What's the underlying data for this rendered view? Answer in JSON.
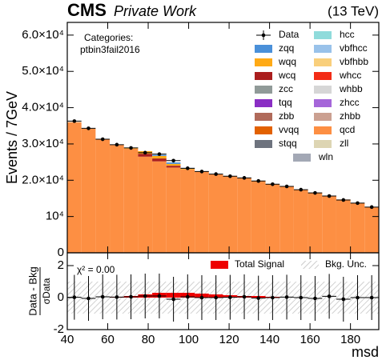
{
  "chart_data": {
    "type": "histogram",
    "experiment": "CMS",
    "subtitle": "Private Work",
    "energy": "(13 TeV)",
    "category_title": "Categories:",
    "category_name": "ptbin3fail2016",
    "xlabel": "msd",
    "ylabel": "Events / 7GeV",
    "bins": [
      40,
      47,
      54,
      61,
      68,
      75,
      82,
      89,
      96,
      103,
      110,
      117,
      124,
      131,
      138,
      145,
      152,
      159,
      166,
      173,
      180,
      187,
      194
    ],
    "xlim": [
      40,
      194
    ],
    "xticks": [
      40,
      60,
      80,
      100,
      120,
      140,
      160,
      180
    ],
    "ylim": [
      0,
      63500
    ],
    "yticks": [
      0,
      {
        "value": 10000,
        "label": "10⁴"
      },
      {
        "value": 20000,
        "label": "2.0×10⁴"
      },
      {
        "value": 30000,
        "label": "3.0×10⁴"
      },
      {
        "value": 40000,
        "label": "4.0×10⁴"
      },
      {
        "value": 50000,
        "label": "5.0×10⁴"
      },
      {
        "value": 60000,
        "label": "6.0×10⁴"
      }
    ],
    "data": {
      "name": "Data",
      "color": "#000000",
      "values": [
        36300,
        34300,
        31300,
        29800,
        28900,
        27600,
        27200,
        25400,
        23300,
        22400,
        21700,
        21100,
        20650,
        19800,
        18900,
        18300,
        17400,
        16500,
        15650,
        14560,
        13700,
        12600
      ]
    },
    "series": [
      {
        "name": "zqq",
        "color": "#4a90d9",
        "values": [
          0,
          0,
          0,
          0,
          0,
          0,
          300,
          400,
          200,
          0,
          0,
          0,
          0,
          0,
          0,
          0,
          0,
          0,
          0,
          0,
          0,
          0
        ]
      },
      {
        "name": "wqq",
        "color": "#ffaa16",
        "values": [
          0,
          0,
          0,
          0,
          300,
          700,
          700,
          500,
          200,
          0,
          0,
          0,
          0,
          0,
          0,
          0,
          0,
          0,
          0,
          0,
          0,
          0
        ]
      },
      {
        "name": "wcq",
        "color": "#aa1e1e",
        "values": [
          0,
          0,
          0,
          0,
          0,
          800,
          800,
          500,
          0,
          0,
          0,
          0,
          0,
          0,
          0,
          0,
          0,
          0,
          0,
          0,
          0,
          0
        ]
      },
      {
        "name": "zcc",
        "color": "#909a98",
        "values": [
          0,
          0,
          0,
          0,
          0,
          0,
          0,
          0,
          0,
          0,
          0,
          0,
          0,
          0,
          0,
          0,
          0,
          0,
          0,
          0,
          0,
          0
        ]
      },
      {
        "name": "tqq",
        "color": "#8a2ec4",
        "values": [
          0,
          0,
          0,
          0,
          0,
          0,
          0,
          0,
          0,
          0,
          0,
          0,
          0,
          0,
          0,
          0,
          0,
          0,
          0,
          0,
          0,
          0
        ]
      },
      {
        "name": "zbb",
        "color": "#b06a5a",
        "values": [
          0,
          0,
          0,
          0,
          0,
          0,
          0,
          0,
          0,
          0,
          0,
          0,
          0,
          0,
          0,
          0,
          0,
          0,
          0,
          0,
          0,
          0
        ]
      },
      {
        "name": "vvqq",
        "color": "#e26100",
        "values": [
          0,
          0,
          0,
          0,
          0,
          0,
          0,
          0,
          0,
          0,
          0,
          0,
          0,
          0,
          0,
          0,
          0,
          0,
          0,
          0,
          0,
          0
        ]
      },
      {
        "name": "stqq",
        "color": "#6e737e",
        "values": [
          0,
          0,
          0,
          0,
          0,
          0,
          0,
          0,
          0,
          0,
          0,
          0,
          0,
          0,
          0,
          0,
          0,
          0,
          0,
          0,
          0,
          0
        ]
      },
      {
        "name": "hcc",
        "color": "#8fdbdb",
        "values": [
          0,
          0,
          0,
          0,
          0,
          0,
          0,
          0,
          0,
          0,
          0,
          0,
          0,
          0,
          0,
          0,
          0,
          0,
          0,
          0,
          0,
          0
        ]
      },
      {
        "name": "vbfhcc",
        "color": "#99c2ea",
        "values": [
          0,
          0,
          0,
          0,
          0,
          0,
          0,
          0,
          0,
          0,
          0,
          0,
          0,
          0,
          0,
          0,
          0,
          0,
          0,
          0,
          0,
          0
        ]
      },
      {
        "name": "vbfhbb",
        "color": "#f9cf7b",
        "values": [
          0,
          0,
          0,
          0,
          0,
          0,
          0,
          0,
          0,
          0,
          0,
          0,
          0,
          0,
          0,
          0,
          0,
          0,
          0,
          0,
          0,
          0
        ]
      },
      {
        "name": "whcc",
        "color": "#f32c16",
        "values": [
          0,
          0,
          0,
          0,
          0,
          0,
          0,
          0,
          0,
          0,
          0,
          0,
          0,
          0,
          0,
          0,
          0,
          0,
          0,
          0,
          0,
          0
        ]
      },
      {
        "name": "whbb",
        "color": "#d6d6d6",
        "values": [
          0,
          0,
          0,
          0,
          0,
          0,
          0,
          0,
          0,
          0,
          0,
          0,
          0,
          0,
          0,
          0,
          0,
          0,
          0,
          0,
          0,
          0
        ]
      },
      {
        "name": "zhcc",
        "color": "#a566d9",
        "values": [
          0,
          0,
          0,
          0,
          0,
          0,
          0,
          0,
          0,
          0,
          0,
          0,
          0,
          0,
          0,
          0,
          0,
          0,
          0,
          0,
          0,
          0
        ]
      },
      {
        "name": "zhbb",
        "color": "#cba091",
        "values": [
          0,
          0,
          0,
          0,
          0,
          0,
          0,
          0,
          0,
          0,
          0,
          0,
          0,
          0,
          0,
          0,
          0,
          0,
          0,
          0,
          0,
          0
        ]
      },
      {
        "name": "qcd",
        "color": "#fd8f43",
        "values": [
          36000,
          34200,
          31200,
          29700,
          28700,
          26500,
          25200,
          23500,
          23000,
          22400,
          21700,
          21100,
          20600,
          19800,
          18900,
          18300,
          17400,
          16600,
          15700,
          14700,
          13700,
          12600
        ]
      },
      {
        "name": "zll",
        "color": "#ddd5b3",
        "values": [
          0,
          0,
          0,
          0,
          0,
          0,
          0,
          0,
          0,
          0,
          0,
          0,
          0,
          0,
          0,
          0,
          0,
          0,
          0,
          0,
          0,
          0
        ]
      },
      {
        "name": "wln",
        "color": "#a3a8b5",
        "values": [
          0,
          0,
          0,
          0,
          0,
          0,
          0,
          0,
          0,
          0,
          0,
          0,
          0,
          0,
          0,
          0,
          0,
          0,
          0,
          0,
          0,
          0
        ]
      }
    ],
    "ratio": {
      "ylabel_numerator": "Data - Bkg",
      "ylabel_denominator": "σData",
      "chi2": "χ² = 0.00",
      "ylim": [
        -2,
        2.8
      ],
      "yticks": [
        -2,
        0,
        2
      ],
      "values": [
        0.02,
        -0.05,
        0.05,
        0.03,
        0.05,
        0.1,
        0.1,
        -0.1,
        0.05,
        0,
        0,
        0.02,
        0.05,
        -0.03,
        0,
        0.03,
        0,
        -0.05,
        0.08,
        -0.1,
        0,
        0
      ],
      "errors": [
        1.4,
        1.4,
        1.4,
        1.4,
        1.4,
        1.4,
        1.4,
        1.4,
        1.4,
        1.4,
        1.4,
        1.4,
        1.4,
        1.4,
        1.4,
        1.4,
        1.4,
        1.4,
        1.4,
        1.4,
        1.4,
        1.4
      ],
      "signal": {
        "name": "Total Signal",
        "color": "#ee0000",
        "values": [
          0,
          0,
          0,
          0.05,
          0.1,
          0.2,
          0.3,
          0.3,
          0.3,
          0.25,
          0.2,
          0.15,
          0.1,
          0.1,
          0.05,
          0,
          0,
          0,
          0,
          0,
          0,
          0
        ]
      },
      "bkg_unc": {
        "name": "Bkg. Unc.",
        "values": [
          1.0,
          1.0,
          1.0,
          1.0,
          1.0,
          1.0,
          1.0,
          1.0,
          1.0,
          1.0,
          1.0,
          1.0,
          1.0,
          1.0,
          1.0,
          1.0,
          1.0,
          1.0,
          1.0,
          1.0,
          1.0,
          1.0
        ]
      }
    }
  }
}
